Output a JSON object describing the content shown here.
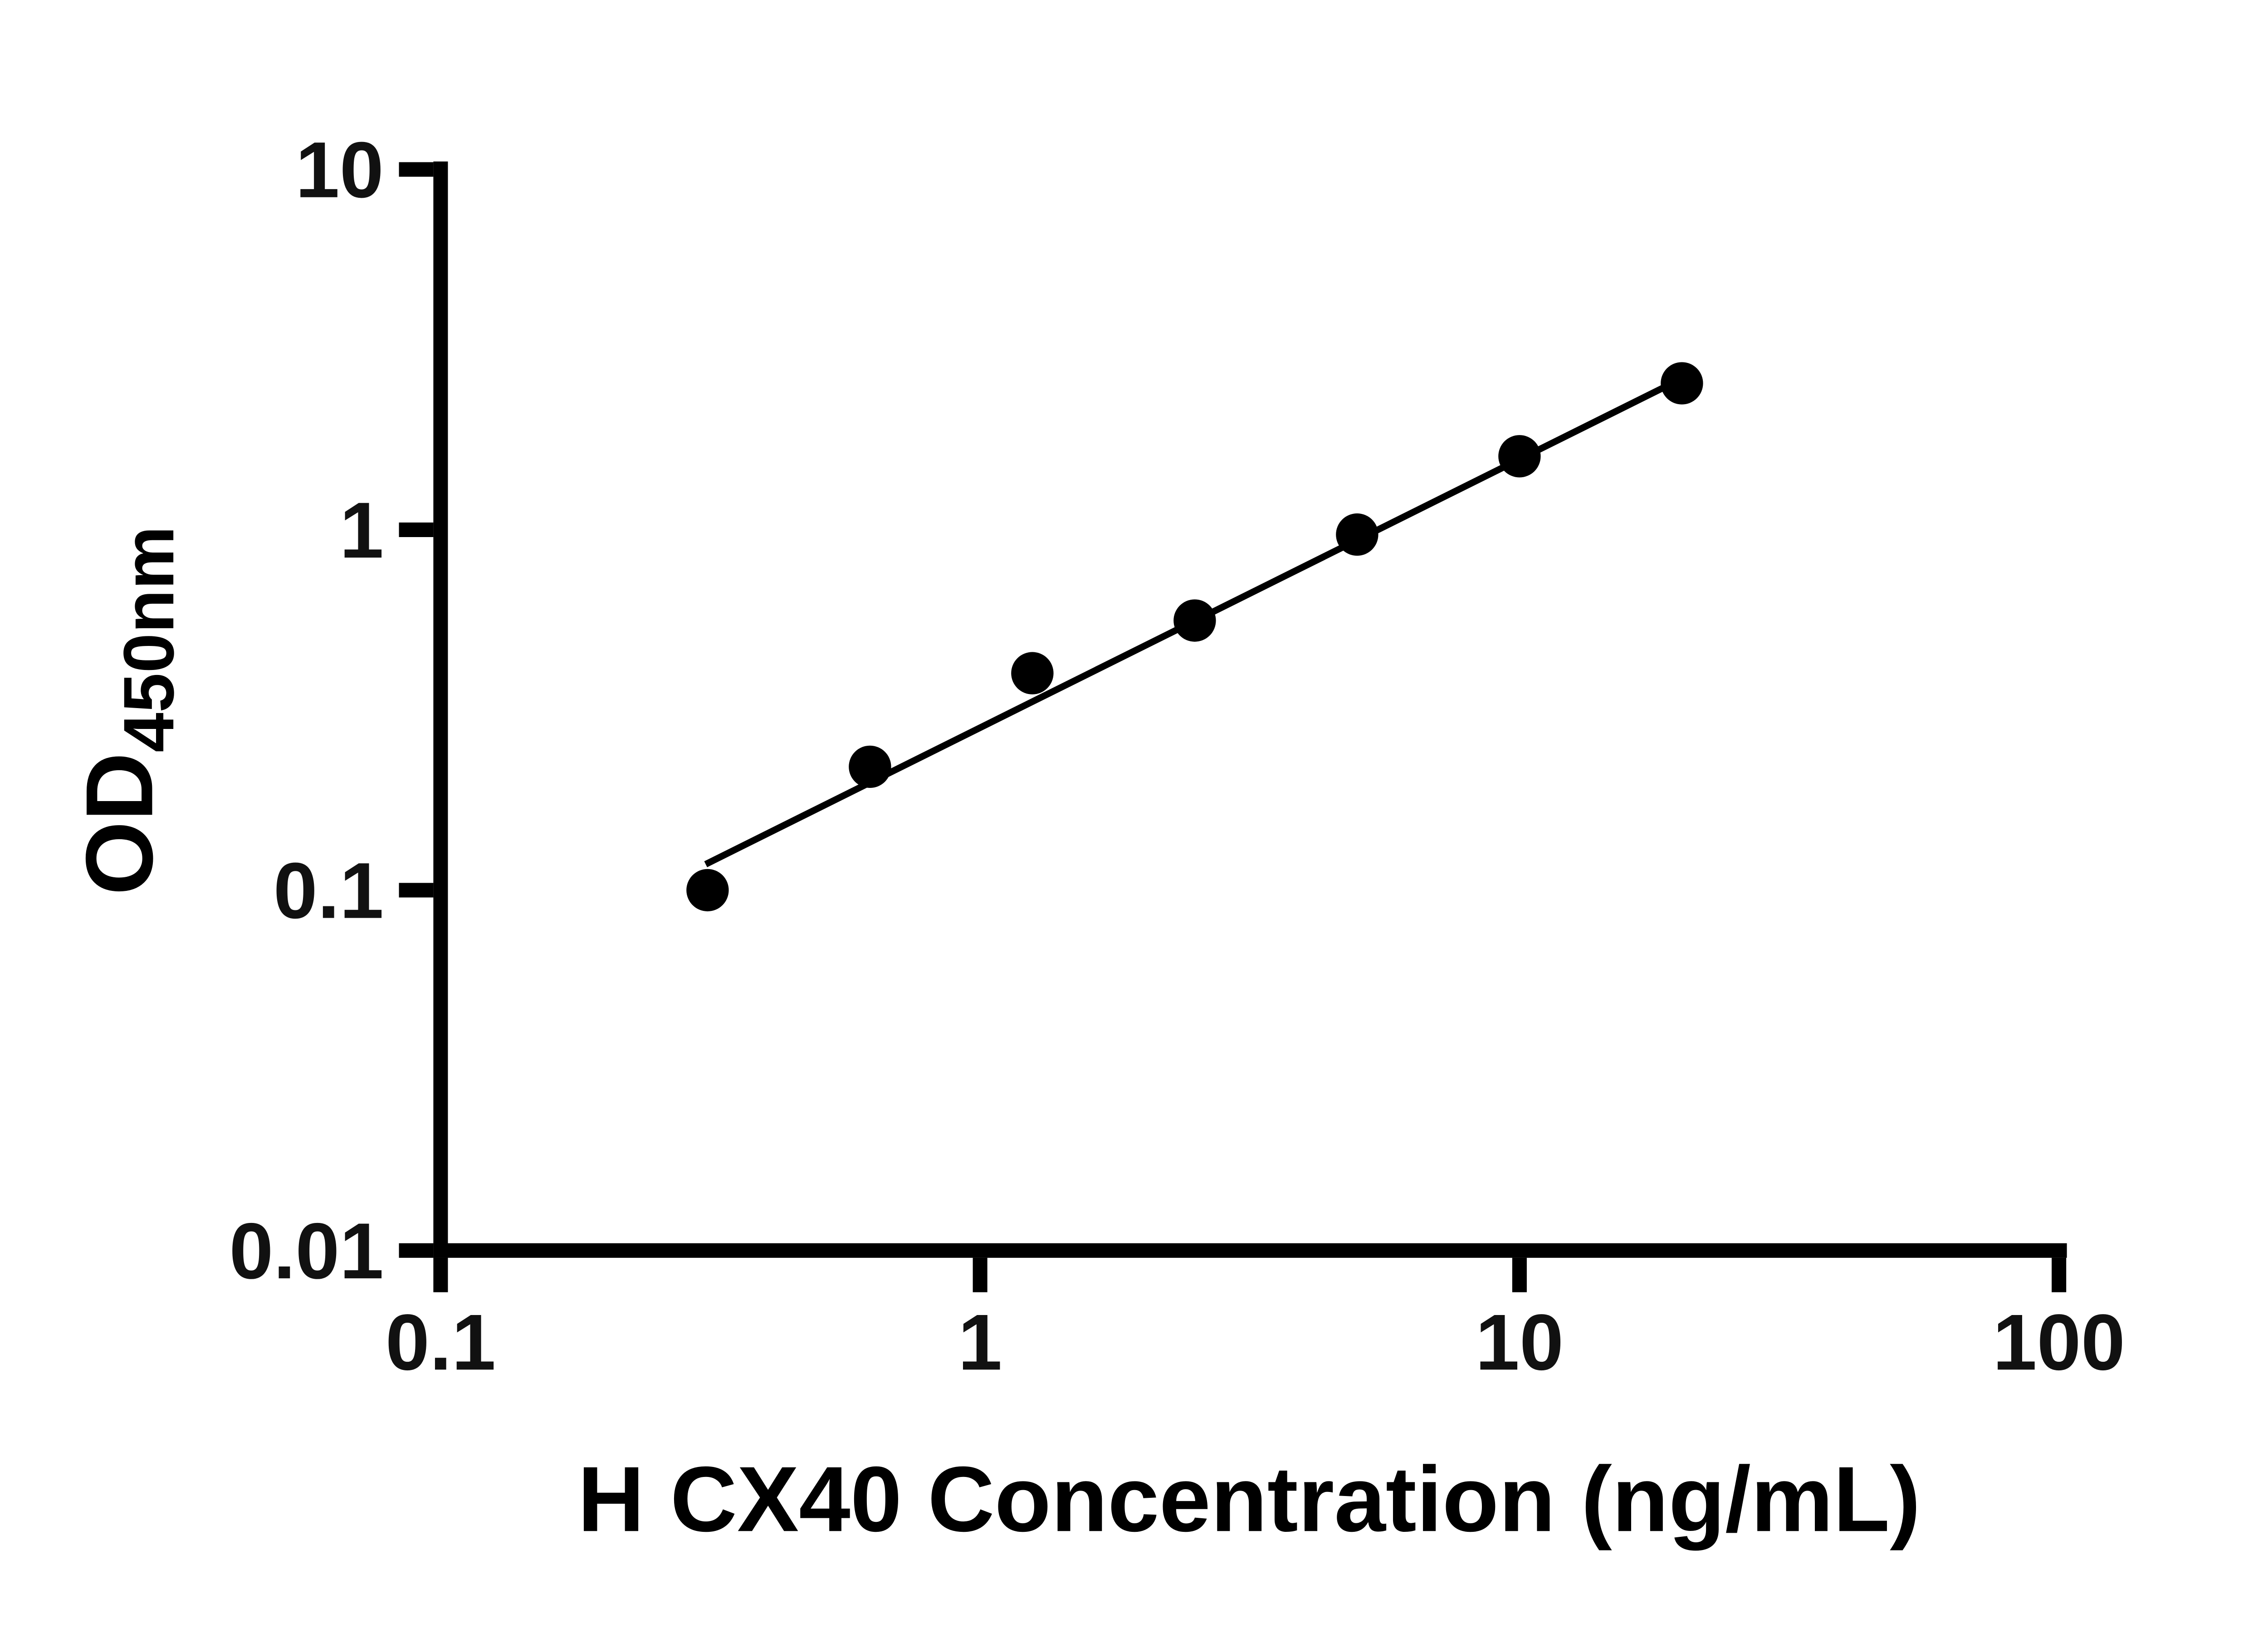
{
  "page": {
    "background": "#ffffff"
  },
  "chart_data": {
    "type": "scatter",
    "title": "",
    "xlabel": "H CX40 Concentration (ng/mL)",
    "ylabel_main": "OD",
    "ylabel_sub": "450nm",
    "x_scale": "log",
    "y_scale": "log",
    "xlim": [
      0.1,
      100
    ],
    "ylim": [
      0.01,
      10
    ],
    "grid": false,
    "legend": "none",
    "marker_color": "#000000",
    "line_color": "#000000",
    "x_ticks": [
      {
        "value": 0.1,
        "label": "0.1"
      },
      {
        "value": 1,
        "label": "1"
      },
      {
        "value": 10,
        "label": "10"
      },
      {
        "value": 100,
        "label": "100"
      }
    ],
    "y_ticks": [
      {
        "value": 10,
        "label": "10"
      },
      {
        "value": 1,
        "label": "1"
      },
      {
        "value": 0.1,
        "label": "0.1"
      },
      {
        "value": 0.01,
        "label": "0.01"
      }
    ],
    "points": [
      {
        "x": 0.3125,
        "y": 0.1
      },
      {
        "x": 0.625,
        "y": 0.22
      },
      {
        "x": 1.25,
        "y": 0.4
      },
      {
        "x": 2.5,
        "y": 0.56
      },
      {
        "x": 5,
        "y": 0.97
      },
      {
        "x": 10,
        "y": 1.6
      },
      {
        "x": 20,
        "y": 2.55
      }
    ],
    "fit_line": {
      "x1": 0.31,
      "y1": 0.118,
      "x2": 20,
      "y2": 2.63
    }
  }
}
